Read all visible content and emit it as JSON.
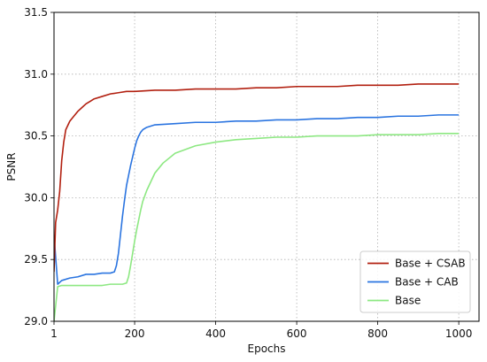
{
  "chart_data": {
    "type": "line",
    "title": "",
    "xlabel": "Epochs",
    "ylabel": "PSNR",
    "xlim": [
      1,
      1050
    ],
    "ylim": [
      29.0,
      31.5
    ],
    "xticks": [
      "1",
      "200",
      "400",
      "600",
      "800",
      "1000"
    ],
    "xtick_values": [
      1,
      200,
      400,
      600,
      800,
      1000
    ],
    "yticks": [
      "29.0",
      "29.5",
      "30.0",
      "30.5",
      "31.0",
      "31.5"
    ],
    "ytick_values": [
      29.0,
      29.5,
      30.0,
      30.5,
      31.0,
      31.5
    ],
    "grid": true,
    "legend_position": "lower right",
    "series": [
      {
        "name": "Base + CSAB",
        "color": "#b22010",
        "x": [
          1,
          5,
          10,
          15,
          20,
          25,
          30,
          40,
          50,
          60,
          70,
          80,
          90,
          100,
          120,
          140,
          160,
          180,
          200,
          250,
          300,
          350,
          400,
          450,
          500,
          550,
          600,
          650,
          700,
          750,
          800,
          850,
          900,
          950,
          1000
        ],
        "y": [
          29.4,
          29.8,
          29.9,
          30.05,
          30.3,
          30.45,
          30.55,
          30.62,
          30.66,
          30.7,
          30.73,
          30.76,
          30.78,
          30.8,
          30.82,
          30.84,
          30.85,
          30.86,
          30.86,
          30.87,
          30.87,
          30.88,
          30.88,
          30.88,
          30.89,
          30.89,
          30.9,
          30.9,
          30.9,
          30.91,
          30.91,
          30.91,
          30.92,
          30.92,
          30.92
        ]
      },
      {
        "name": "Base + CAB",
        "color": "#2a74e0",
        "x": [
          1,
          10,
          20,
          40,
          60,
          80,
          100,
          120,
          140,
          150,
          155,
          160,
          165,
          170,
          175,
          180,
          185,
          190,
          195,
          200,
          205,
          210,
          215,
          220,
          230,
          250,
          300,
          350,
          400,
          450,
          500,
          550,
          600,
          650,
          700,
          750,
          800,
          850,
          900,
          950,
          1000
        ],
        "y": [
          29.7,
          29.3,
          29.33,
          29.35,
          29.36,
          29.38,
          29.38,
          29.39,
          29.39,
          29.4,
          29.45,
          29.55,
          29.7,
          29.85,
          29.98,
          30.1,
          30.18,
          30.26,
          30.33,
          30.4,
          30.46,
          30.5,
          30.53,
          30.55,
          30.57,
          30.59,
          30.6,
          30.61,
          30.61,
          30.62,
          30.62,
          30.63,
          30.63,
          30.64,
          30.64,
          30.65,
          30.65,
          30.66,
          30.66,
          30.67,
          30.67
        ]
      },
      {
        "name": "Base",
        "color": "#8de882",
        "x": [
          1,
          10,
          20,
          40,
          60,
          80,
          100,
          120,
          140,
          160,
          170,
          180,
          185,
          190,
          195,
          200,
          205,
          210,
          215,
          220,
          230,
          240,
          250,
          270,
          300,
          350,
          400,
          450,
          500,
          550,
          600,
          650,
          700,
          750,
          800,
          850,
          900,
          950,
          1000
        ],
        "y": [
          29.0,
          29.28,
          29.29,
          29.29,
          29.29,
          29.29,
          29.29,
          29.29,
          29.3,
          29.3,
          29.3,
          29.31,
          29.36,
          29.45,
          29.55,
          29.65,
          29.74,
          29.82,
          29.9,
          29.97,
          30.06,
          30.13,
          30.2,
          30.28,
          30.36,
          30.42,
          30.45,
          30.47,
          30.48,
          30.49,
          30.49,
          30.5,
          30.5,
          30.5,
          30.51,
          30.51,
          30.51,
          30.52,
          30.52
        ]
      }
    ]
  }
}
